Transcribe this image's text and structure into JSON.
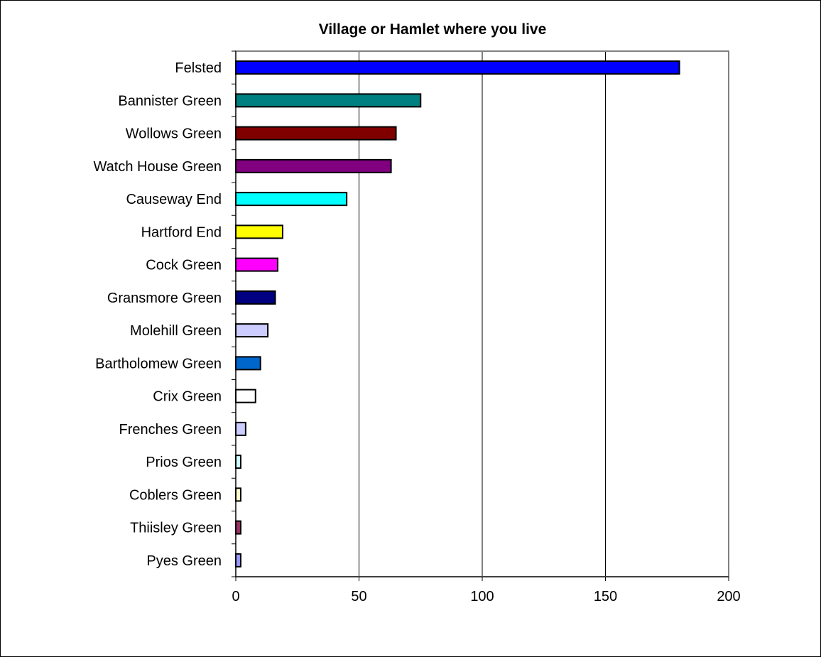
{
  "chart_data": {
    "type": "bar",
    "orientation": "horizontal",
    "title": "Village or Hamlet where you live",
    "xlabel": "",
    "ylabel": "",
    "xlim": [
      0,
      200
    ],
    "xticks": [
      0,
      50,
      100,
      150,
      200
    ],
    "grid": true,
    "legend": "none",
    "categories": [
      "Felsted",
      "Bannister Green",
      "Wollows Green",
      "Watch House Green",
      "Causeway End",
      "Hartford End",
      "Cock Green",
      "Gransmore Green",
      "Molehill Green",
      "Bartholomew Green",
      "Crix Green",
      "Frenches Green",
      "Prios Green",
      "Coblers Green",
      "Thiisley Green",
      "Pyes Green"
    ],
    "values": [
      180,
      75,
      65,
      63,
      45,
      19,
      17,
      16,
      13,
      10,
      8,
      4,
      2,
      2,
      2,
      2
    ],
    "colors": [
      "#0000FF",
      "#008080",
      "#800000",
      "#800080",
      "#00FFFF",
      "#FFFF00",
      "#FF00FF",
      "#000080",
      "#CCCCFF",
      "#0066CC",
      "#FFFFFF",
      "#CCCCFF",
      "#CCFFFF",
      "#FFFFCC",
      "#993366",
      "#9999FF"
    ]
  }
}
